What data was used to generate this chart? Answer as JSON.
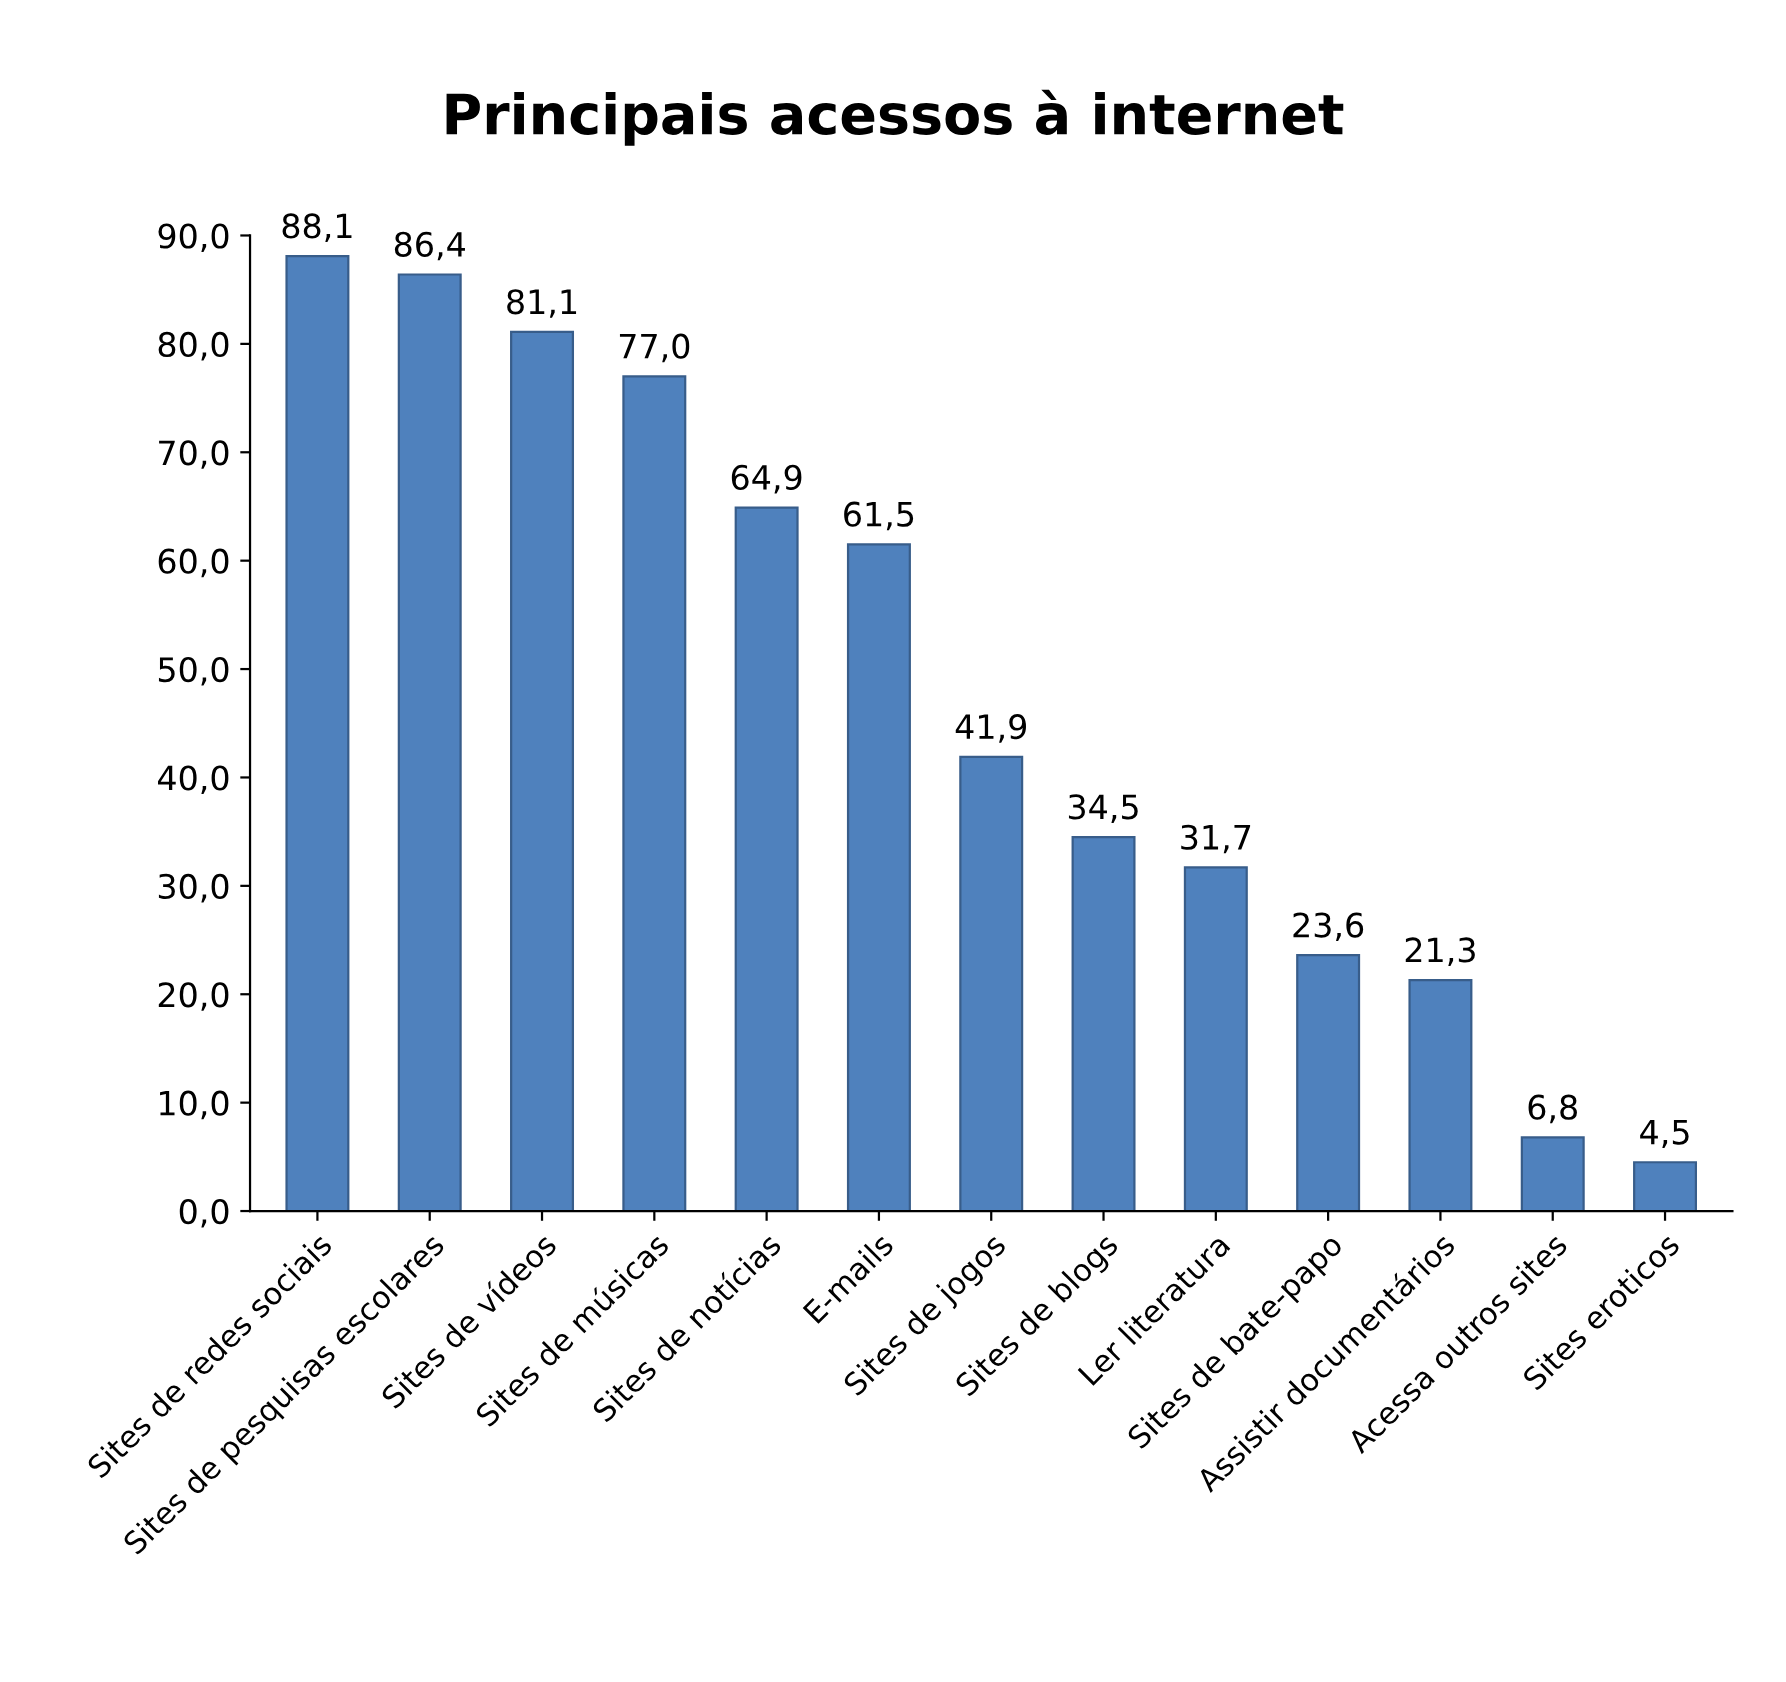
{
  "chart_data": {
    "type": "bar",
    "title": "Principais acessos à internet",
    "categories": [
      "Sites de redes sociais",
      "Sites de pesquisas escolares",
      "Sites de vídeos",
      "Sites de músicas",
      "Sites de notícias",
      "E-mails",
      "Sites de jogos",
      "Sites de blogs",
      "Ler literatura",
      "Sites de bate-papo",
      "Assistir documentários",
      "Acessa outros sites",
      "Sites eroticos"
    ],
    "values": [
      88.1,
      86.4,
      81.1,
      77.0,
      64.9,
      61.5,
      41.9,
      34.5,
      31.7,
      23.6,
      21.3,
      6.8,
      4.5
    ],
    "value_labels": [
      "88,1",
      "86,4",
      "81,1",
      "77,0",
      "64,9",
      "61,5",
      "41,9",
      "34,5",
      "31,7",
      "23,6",
      "21,3",
      "6,8",
      "4,5"
    ],
    "color": "#4f81bd",
    "ylim": [
      0,
      90
    ],
    "yticks": [
      {
        "value": 0,
        "label": "0,0"
      },
      {
        "value": 10,
        "label": "10,0"
      },
      {
        "value": 20,
        "label": "20,0"
      },
      {
        "value": 30,
        "label": "30,0"
      },
      {
        "value": 40,
        "label": "40,0"
      },
      {
        "value": 50,
        "label": "50,0"
      },
      {
        "value": 60,
        "label": "60,0"
      },
      {
        "value": 70,
        "label": "70,0"
      },
      {
        "value": 80,
        "label": "80,0"
      },
      {
        "value": 90,
        "label": "90,0"
      }
    ],
    "grid": false,
    "legend": false
  }
}
